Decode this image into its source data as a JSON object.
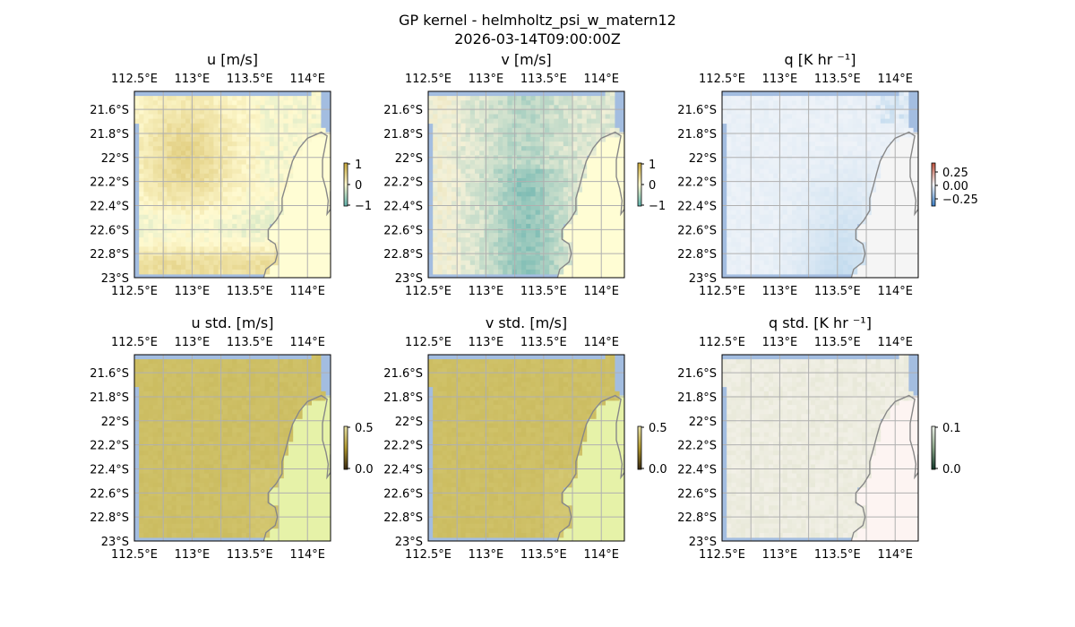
{
  "figure": {
    "title": "GP kernel - helmholtz_psi_w_matern12",
    "subtitle": "2026-03-14T09:00:00Z"
  },
  "chart_data": [
    {
      "type": "heatmap",
      "title": "u [m/s]",
      "colorbar": {
        "ticks": [
          "1",
          "0",
          "−1"
        ]
      },
      "colormap": "diverging-brown-white-teal",
      "xticks": [
        "112.5°E",
        "113°E",
        "113.5°E",
        "114°E"
      ],
      "yticks": [
        "21.6°S",
        "21.8°S",
        "22°S",
        "22.2°S",
        "22.4°S",
        "22.6°S",
        "22.8°S",
        "23°S"
      ],
      "xlim": [
        112.5,
        114.2
      ],
      "ylim": [
        -23.0,
        -21.45
      ],
      "field": "u"
    },
    {
      "type": "heatmap",
      "title": "v [m/s]",
      "colorbar": {
        "ticks": [
          "1",
          "0",
          "−1"
        ]
      },
      "colormap": "diverging-brown-white-teal",
      "xticks": [
        "112.5°E",
        "113°E",
        "113.5°E",
        "114°E"
      ],
      "yticks": [
        "21.6°S",
        "21.8°S",
        "22°S",
        "22.2°S",
        "22.4°S",
        "22.6°S",
        "22.8°S",
        "23°S"
      ],
      "xlim": [
        112.5,
        114.2
      ],
      "ylim": [
        -23.0,
        -21.45
      ],
      "field": "v"
    },
    {
      "type": "heatmap",
      "title": "q [K hr ⁻¹]",
      "colorbar": {
        "ticks": [
          "0.25",
          "0.00",
          "−0.25"
        ]
      },
      "colormap": "diverging-red-white-blue",
      "xticks": [
        "112.5°E",
        "113°E",
        "113.5°E",
        "114°E"
      ],
      "yticks": [
        "21.6°S",
        "21.8°S",
        "22°S",
        "22.2°S",
        "22.4°S",
        "22.6°S",
        "22.8°S",
        "23°S"
      ],
      "xlim": [
        112.5,
        114.2
      ],
      "ylim": [
        -23.0,
        -21.45
      ],
      "field": "q"
    },
    {
      "type": "heatmap",
      "title": "u std. [m/s]",
      "colorbar": {
        "ticks": [
          "0.5",
          "0.0"
        ]
      },
      "colormap": "sequential-dark-to-light",
      "xticks": [
        "112.5°E",
        "113°E",
        "113.5°E",
        "114°E"
      ],
      "yticks": [
        "21.6°S",
        "21.8°S",
        "22°S",
        "22.2°S",
        "22.4°S",
        "22.6°S",
        "22.8°S",
        "23°S"
      ],
      "xlim": [
        112.5,
        114.2
      ],
      "ylim": [
        -23.0,
        -21.45
      ],
      "field": "ustd"
    },
    {
      "type": "heatmap",
      "title": "v std. [m/s]",
      "colorbar": {
        "ticks": [
          "0.5",
          "0.0"
        ]
      },
      "colormap": "sequential-dark-to-light",
      "xticks": [
        "112.5°E",
        "113°E",
        "113.5°E",
        "114°E"
      ],
      "yticks": [
        "21.6°S",
        "21.8°S",
        "22°S",
        "22.2°S",
        "22.4°S",
        "22.6°S",
        "22.8°S",
        "23°S"
      ],
      "xlim": [
        112.5,
        114.2
      ],
      "ylim": [
        -23.0,
        -21.45
      ],
      "field": "vstd"
    },
    {
      "type": "heatmap",
      "title": "q std. [K hr ⁻¹]",
      "colorbar": {
        "ticks": [
          "0.1",
          "0.0"
        ]
      },
      "colormap": "sequential-dark-to-light",
      "xticks": [
        "112.5°E",
        "113°E",
        "113.5°E",
        "114°E"
      ],
      "yticks": [
        "21.6°S",
        "21.8°S",
        "22°S",
        "22.2°S",
        "22.4°S",
        "22.6°S",
        "22.8°S",
        "23°S"
      ],
      "xlim": [
        112.5,
        114.2
      ],
      "ylim": [
        -23.0,
        -21.45
      ],
      "field": "qstd"
    }
  ],
  "colors": {
    "ocean": "#a3bde0",
    "coast": "#888888",
    "grid": "#b0b0b0",
    "land_u": "#fffdd4",
    "land_v": "#fffdd4",
    "land_q": "#f5f5f5",
    "land_std": "#e6f2a8",
    "land_qstd": "#fdf4f2"
  }
}
